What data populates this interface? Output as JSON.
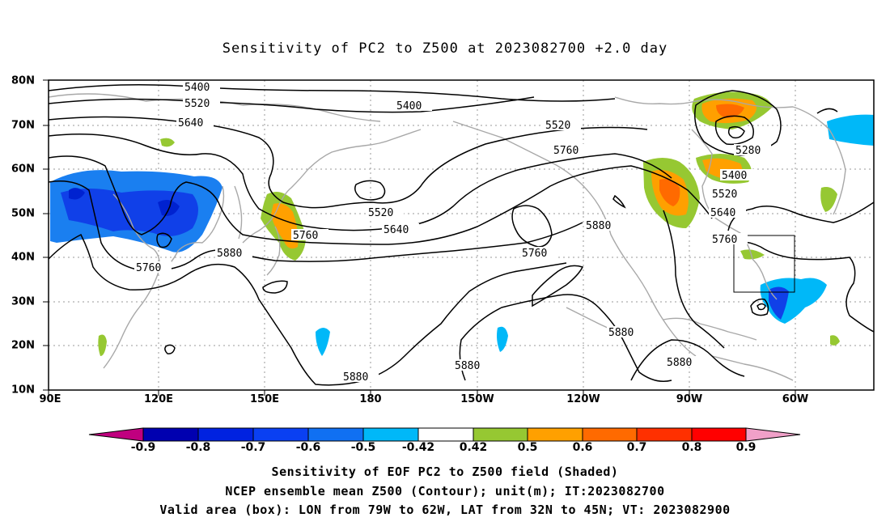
{
  "title": "Sensitivity of PC2 to Z500 at 2023082700 +2.0 day",
  "map": {
    "lat_labels": [
      "80N",
      "70N",
      "60N",
      "50N",
      "40N",
      "30N",
      "20N",
      "10N"
    ],
    "lon_labels": [
      "90E",
      "120E",
      "150E",
      "180",
      "150W",
      "120W",
      "90W",
      "60W"
    ],
    "contour_labels": [
      "5400",
      "5520",
      "5640",
      "5400",
      "5520",
      "5760",
      "5520",
      "5640",
      "5760",
      "5880",
      "5760",
      "5880",
      "5760",
      "5280",
      "5400",
      "5520",
      "5640",
      "5760",
      "5880",
      "5880",
      "5880",
      "5880"
    ],
    "valid_box": {
      "lon_west": "79W",
      "lon_east": "62W",
      "lat_south": "32N",
      "lat_north": "45N"
    }
  },
  "colorbar": {
    "labels": [
      "-0.9",
      "-0.8",
      "-0.7",
      "-0.6",
      "-0.5",
      "-0.42",
      "0.42",
      "0.5",
      "0.6",
      "0.7",
      "0.8",
      "0.9"
    ],
    "colors": [
      "#c0007f",
      "#0000b0",
      "#0022e0",
      "#0a40f2",
      "#1070f2",
      "#00b8f8",
      "#ffffff",
      "#96c832",
      "#ffa000",
      "#ff6a00",
      "#ff3000",
      "#ff0000",
      "#f0a0c8"
    ]
  },
  "shading_colors": {
    "neg_strong": "#1040e8",
    "neg_mid": "#1a7ff0",
    "neg_weak": "#00c0f8",
    "pos_weak": "#96c832",
    "pos_mid": "#ffa000",
    "pos_strong": "#ff6a00"
  },
  "captions": [
    "Sensitivity of EOF PC2 to Z500 field (Shaded)",
    "NCEP ensemble mean Z500 (Contour); unit(m); IT:2023082700",
    "Valid area (box): LON from 79W to 62W, LAT from 32N to 45N; VT: 2023082900"
  ]
}
